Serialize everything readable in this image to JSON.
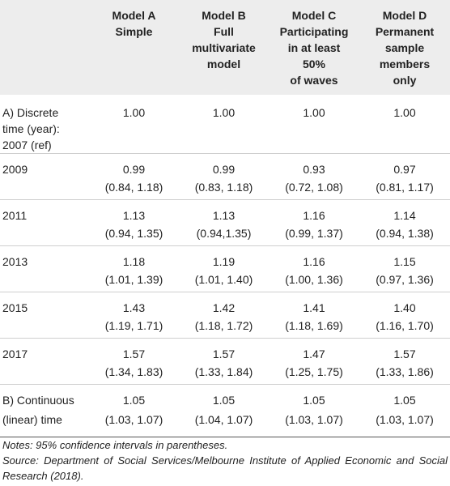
{
  "header": {
    "col0": "",
    "model_a": [
      "Model A",
      "Simple"
    ],
    "model_b": [
      "Model B",
      "Full",
      "multivariate",
      "model"
    ],
    "model_c": [
      "Model C",
      "Participating",
      "in at least",
      "50%",
      "of waves"
    ],
    "model_d": [
      "Model D",
      "Permanent",
      "sample",
      "members",
      "only"
    ]
  },
  "rows": [
    {
      "label": [
        "A) Discrete",
        "time (year):",
        "2007 (ref)"
      ],
      "values": [
        "1.00",
        "1.00",
        "1.00",
        "1.00"
      ],
      "ci": []
    },
    {
      "label": [
        "2009"
      ],
      "values": [
        "0.99",
        "0.99",
        "0.93",
        "0.97"
      ],
      "ci": [
        "(0.84, 1.18)",
        "(0.83, 1.18)",
        "(0.72, 1.08)",
        "(0.81, 1.17)"
      ]
    },
    {
      "label": [
        "2011"
      ],
      "values": [
        "1.13",
        "1.13",
        "1.16",
        "1.14"
      ],
      "ci": [
        "(0.94, 1.35)",
        "(0.94,1.35)",
        "(0.99, 1.37)",
        "(0.94, 1.38)"
      ]
    },
    {
      "label": [
        "2013"
      ],
      "values": [
        "1.18",
        "1.19",
        "1.16",
        "1.15"
      ],
      "ci": [
        "(1.01, 1.39)",
        "(1.01, 1.40)",
        "(1.00, 1.36)",
        "(0.97, 1.36)"
      ]
    },
    {
      "label": [
        "2015"
      ],
      "values": [
        "1.43",
        "1.42",
        "1.41",
        "1.40"
      ],
      "ci": [
        "(1.19, 1.71)",
        "(1.18, 1.72)",
        "(1.18, 1.69)",
        "(1.16, 1.70)"
      ]
    },
    {
      "label": [
        "2017"
      ],
      "values": [
        "1.57",
        "1.57",
        "1.47",
        "1.57"
      ],
      "ci": [
        "(1.34, 1.83)",
        "(1.33, 1.84)",
        "(1.25, 1.75)",
        "(1.33, 1.86)"
      ]
    },
    {
      "label": [
        "B) Continuous",
        "(linear) time"
      ],
      "values": [
        "1.05",
        "1.05",
        "1.05",
        "1.05"
      ],
      "ci": [
        "(1.03, 1.07)",
        "(1.04, 1.07)",
        "(1.03, 1.07)",
        "(1.03, 1.07)"
      ]
    }
  ],
  "notes": {
    "line1": "Notes: 95% confidence intervals in parentheses.",
    "line2": "Source: Department of Social Services/Melbourne Institute of Applied Economic and Social Research (2018)."
  }
}
